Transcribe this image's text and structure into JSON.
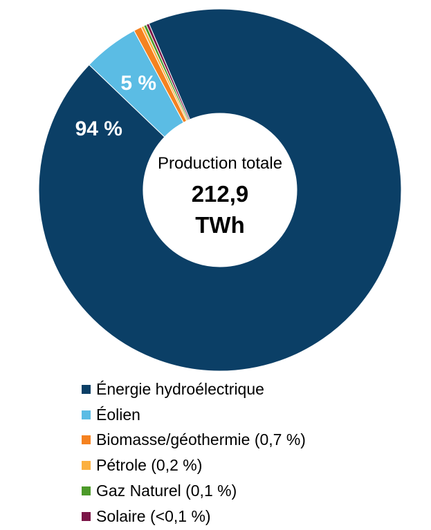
{
  "chart_data": {
    "type": "pie",
    "subtype": "donut",
    "center_caption": "Production totale",
    "center_value_line1": "212,9",
    "center_value_line2": "TWh",
    "slices": [
      {
        "name": "Énergie hydroélectrique",
        "legend_label": "Énergie hydroélectrique",
        "value": 94.0,
        "color": "#0b3f66",
        "data_label": "94 %"
      },
      {
        "name": "Éolien",
        "legend_label": "Éolien",
        "value": 5.0,
        "color": "#5bbce4",
        "data_label": "5 %"
      },
      {
        "name": "Biomasse/géothermie",
        "legend_label": "Biomasse/géothermie (0,7 %)",
        "value": 0.7,
        "color": "#f58220",
        "data_label": ""
      },
      {
        "name": "Pétrole",
        "legend_label": "Pétrole (0,2 %)",
        "value": 0.2,
        "color": "#fbb040",
        "data_label": ""
      },
      {
        "name": "Gaz Naturel",
        "legend_label": "Gaz Naturel (0,1 %)",
        "value": 0.1,
        "color": "#4c9a2a",
        "data_label": ""
      },
      {
        "name": "Solaire",
        "legend_label": "Solaire (<0,1 %)",
        "value": 0.05,
        "color": "#7b1648",
        "data_label": ""
      }
    ],
    "legend_position": "bottom"
  }
}
